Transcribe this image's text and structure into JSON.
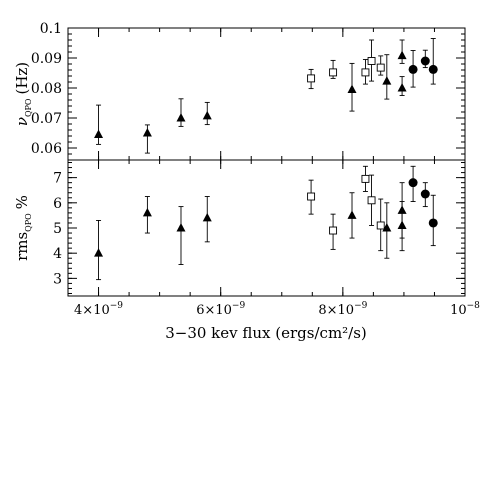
{
  "chart_data": [
    {
      "type": "scatter",
      "panel": "top",
      "ylabel_symbol": "ν",
      "ylabel_sub": "QPO",
      "ylabel_unit": "(Hz)",
      "ylim": [
        0.056,
        0.1
      ],
      "yticks": [
        "0.06",
        "0.07",
        "0.08",
        "0.09",
        "0.1"
      ],
      "grid": false,
      "series": [
        {
          "marker": "triangle",
          "points": [
            {
              "x": 4e-09,
              "y": 0.0645,
              "err": [
                0.0612,
                0.0743
              ]
            },
            {
              "x": 4.8e-09,
              "y": 0.065,
              "err": [
                0.0583,
                0.0677
              ]
            },
            {
              "x": 5.35e-09,
              "y": 0.07,
              "err": [
                0.0672,
                0.0764
              ]
            },
            {
              "x": 5.78e-09,
              "y": 0.0707,
              "err": [
                0.0678,
                0.0752
              ]
            },
            {
              "x": 8.15e-09,
              "y": 0.0795,
              "err": [
                0.0723,
                0.0882
              ]
            },
            {
              "x": 8.72e-09,
              "y": 0.0823,
              "err": [
                0.0763,
                0.0911
              ]
            },
            {
              "x": 8.97e-09,
              "y": 0.0908,
              "err": [
                0.0882,
                0.096
              ]
            },
            {
              "x": 8.97e-09,
              "y": 0.08,
              "err": [
                0.0775,
                0.0838
              ]
            }
          ]
        },
        {
          "marker": "open-square",
          "points": [
            {
              "x": 7.48e-09,
              "y": 0.0832,
              "err": [
                0.0798,
                0.0862
              ]
            },
            {
              "x": 7.84e-09,
              "y": 0.0852,
              "err": [
                0.0832,
                0.0892
              ]
            },
            {
              "x": 8.37e-09,
              "y": 0.0852,
              "err": [
                0.0813,
                0.0895
              ]
            },
            {
              "x": 8.47e-09,
              "y": 0.089,
              "err": [
                0.0823,
                0.096
              ]
            },
            {
              "x": 8.62e-09,
              "y": 0.0868,
              "err": [
                0.0843,
                0.0907
              ]
            }
          ]
        },
        {
          "marker": "filled-circle",
          "points": [
            {
              "x": 9.15e-09,
              "y": 0.0862,
              "err": [
                0.0803,
                0.0925
              ]
            },
            {
              "x": 9.35e-09,
              "y": 0.089,
              "err": [
                0.0868,
                0.0926
              ]
            },
            {
              "x": 9.48e-09,
              "y": 0.0862,
              "err": [
                0.0813,
                0.0965
              ]
            }
          ]
        }
      ]
    },
    {
      "type": "scatter",
      "panel": "bottom",
      "xlabel": "3−30 kev flux (ergs/cm²/s)",
      "xlim": [
        3.5e-09,
        1e-08
      ],
      "xticks": [
        {
          "value": 4e-09,
          "mant": "4×10",
          "exp": "−9"
        },
        {
          "value": 6e-09,
          "mant": "6×10",
          "exp": "−9"
        },
        {
          "value": 8e-09,
          "mant": "8×10",
          "exp": "−9"
        },
        {
          "value": 1e-08,
          "mant": "10",
          "exp": "−8"
        }
      ],
      "ylabel_text": "rms",
      "ylabel_sub": "QPO",
      "ylabel_unit": "%",
      "ylim": [
        2.3,
        7.7
      ],
      "yticks": [
        "3",
        "4",
        "5",
        "6",
        "7"
      ],
      "grid": false,
      "series": [
        {
          "marker": "triangle",
          "points": [
            {
              "x": 4e-09,
              "y": 4.0,
              "err": [
                2.95,
                5.3
              ]
            },
            {
              "x": 4.8e-09,
              "y": 5.6,
              "err": [
                4.8,
                6.25
              ]
            },
            {
              "x": 5.35e-09,
              "y": 5.0,
              "err": [
                3.55,
                5.85
              ]
            },
            {
              "x": 5.78e-09,
              "y": 5.4,
              "err": [
                4.45,
                6.25
              ]
            },
            {
              "x": 8.15e-09,
              "y": 5.5,
              "err": [
                4.6,
                6.4
              ]
            },
            {
              "x": 8.72e-09,
              "y": 5.0,
              "err": [
                3.8,
                6.0
              ]
            },
            {
              "x": 8.97e-09,
              "y": 5.7,
              "err": [
                4.6,
                6.8
              ]
            },
            {
              "x": 8.97e-09,
              "y": 5.1,
              "err": [
                4.1,
                6.05
              ]
            }
          ]
        },
        {
          "marker": "open-square",
          "points": [
            {
              "x": 7.48e-09,
              "y": 6.25,
              "err": [
                5.55,
                6.9
              ]
            },
            {
              "x": 7.84e-09,
              "y": 4.9,
              "err": [
                4.15,
                5.55
              ]
            },
            {
              "x": 8.37e-09,
              "y": 6.95,
              "err": [
                6.45,
                7.45
              ]
            },
            {
              "x": 8.47e-09,
              "y": 6.1,
              "err": [
                5.1,
                7.1
              ]
            },
            {
              "x": 8.62e-09,
              "y": 5.1,
              "err": [
                4.1,
                6.15
              ]
            }
          ]
        },
        {
          "marker": "filled-circle",
          "points": [
            {
              "x": 9.15e-09,
              "y": 6.8,
              "err": [
                6.05,
                7.45
              ]
            },
            {
              "x": 9.35e-09,
              "y": 6.35,
              "err": [
                5.85,
                6.8
              ]
            },
            {
              "x": 9.48e-09,
              "y": 5.2,
              "err": [
                4.3,
                6.3
              ]
            }
          ]
        }
      ]
    }
  ]
}
